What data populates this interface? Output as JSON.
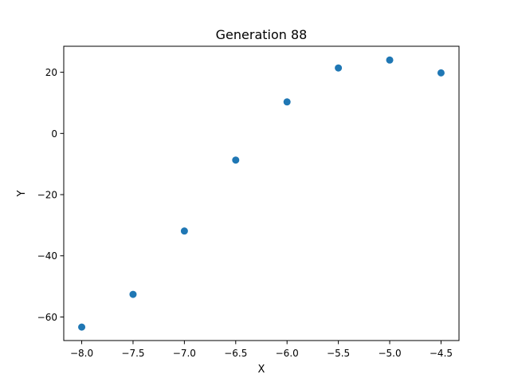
{
  "chart_data": {
    "type": "scatter",
    "title": "Generation 88",
    "xlabel": "X",
    "ylabel": "Y",
    "xlim": [
      -8.175,
      -4.325
    ],
    "ylim": [
      -67.7,
      28.5
    ],
    "xticks": [
      -8.0,
      -7.5,
      -7.0,
      -6.5,
      -6.0,
      -5.5,
      -5.0,
      -4.5
    ],
    "xtick_labels": [
      "−8.0",
      "−7.5",
      "−7.0",
      "−6.5",
      "−6.0",
      "−5.5",
      "−5.0",
      "−4.5"
    ],
    "yticks": [
      -60,
      -40,
      -20,
      0,
      20
    ],
    "ytick_labels": [
      "−60",
      "−40",
      "−20",
      "0",
      "20"
    ],
    "grid": false,
    "marker_color": "#1f77b4",
    "series": [
      {
        "x": [
          -8.0,
          -7.5,
          -7.0,
          -6.5,
          -6.0,
          -5.5,
          -5.0,
          -4.5
        ],
        "y": [
          -63.3,
          -52.6,
          -31.9,
          -8.7,
          10.3,
          21.4,
          24.0,
          19.8
        ]
      }
    ]
  }
}
